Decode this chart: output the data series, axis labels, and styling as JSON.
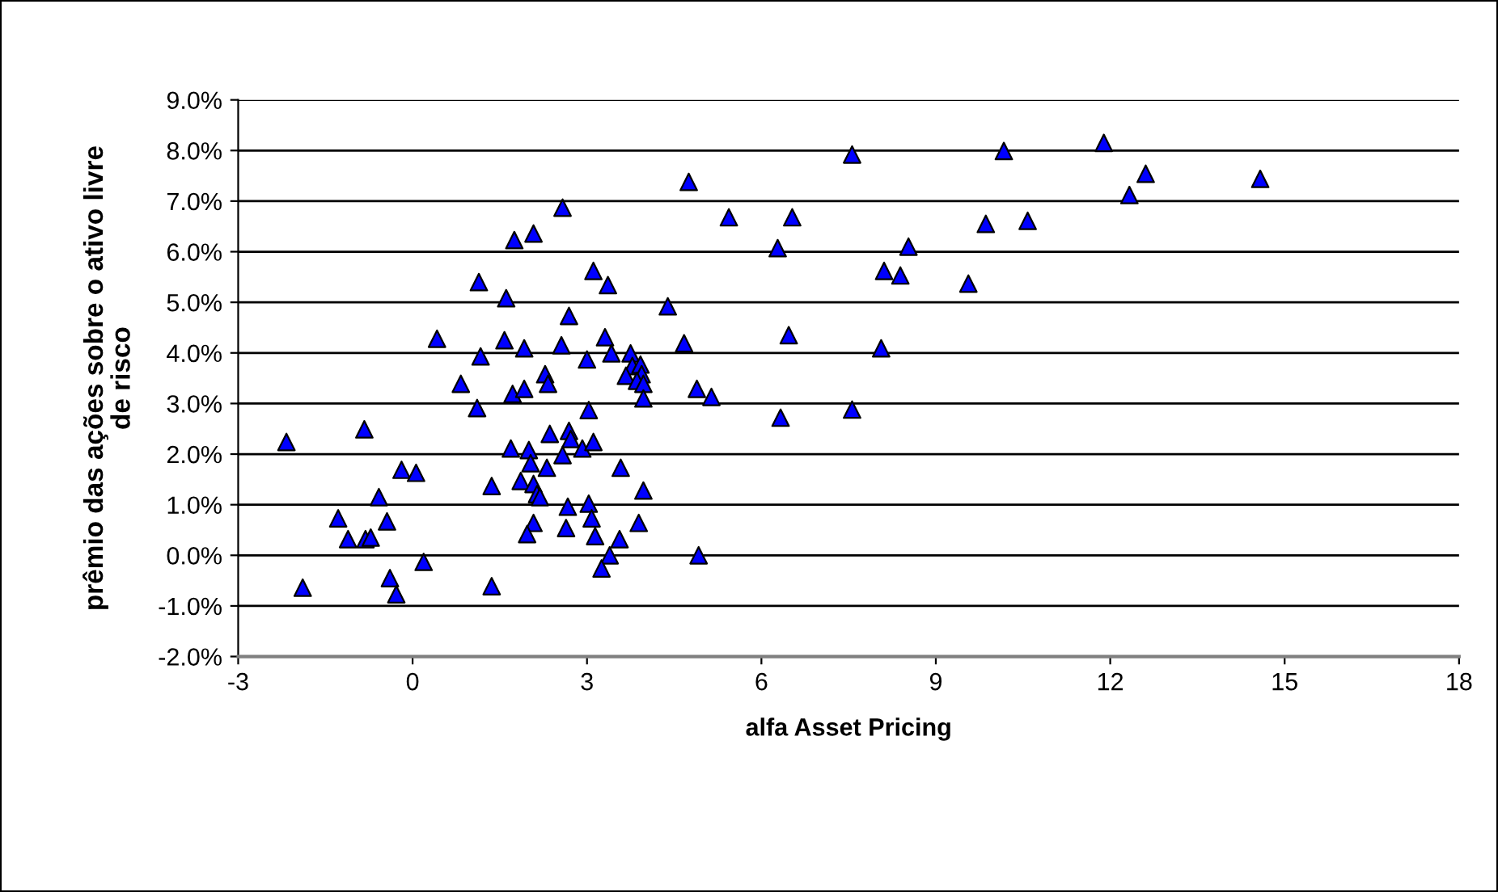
{
  "chart_data": {
    "type": "scatter",
    "xlabel": "alfa Asset Pricing",
    "ylabel": "prêmio das ações sobre o ativo livre\nde risco",
    "xlim": [
      -3,
      18
    ],
    "xticks": [
      -3,
      0,
      3,
      6,
      9,
      12,
      15,
      18
    ],
    "ylim": [
      -2,
      9
    ],
    "yticks": [
      {
        "value": -2,
        "label": "-2.0%"
      },
      {
        "value": -1,
        "label": "-1.0%"
      },
      {
        "value": 0,
        "label": "0.0%"
      },
      {
        "value": 1,
        "label": "1.0%"
      },
      {
        "value": 2,
        "label": "2.0%"
      },
      {
        "value": 3,
        "label": "3.0%"
      },
      {
        "value": 4,
        "label": "4.0%"
      },
      {
        "value": 5,
        "label": "5.0%"
      },
      {
        "value": 6,
        "label": "6.0%"
      },
      {
        "value": 7,
        "label": "7.0%"
      },
      {
        "value": 8,
        "label": "8.0%"
      },
      {
        "value": 9,
        "label": "9.0%"
      }
    ],
    "grid": "y",
    "marker": "triangle",
    "legend": false,
    "series": [
      {
        "color": "#0000ff",
        "x": [
          4.75,
          5.44,
          2.58,
          1.75,
          2.08,
          3.11,
          3.36,
          1.14,
          1.61,
          2.69,
          4.39,
          0.42,
          1.58,
          1.92,
          2.56,
          3.31,
          4.67,
          1.17,
          3.0,
          3.42,
          3.75,
          3.78,
          3.92,
          3.94,
          3.67,
          3.86,
          3.97,
          0.83,
          1.72,
          1.92,
          2.28,
          2.33,
          4.89,
          5.14,
          3.97,
          7.56,
          10.17,
          11.89,
          12.61,
          12.33,
          14.58,
          6.53,
          6.28,
          8.53,
          8.11,
          8.39,
          9.56,
          9.86,
          10.58,
          6.47,
          8.06,
          6.33,
          7.56,
          -2.17,
          -0.83,
          3.03,
          1.11,
          1.69,
          2.0,
          2.03,
          2.36,
          2.69,
          2.72,
          2.58,
          2.92,
          3.11,
          2.31,
          3.58,
          3.97,
          1.36,
          1.86,
          2.08,
          2.14,
          2.19,
          2.67,
          3.03,
          3.08,
          2.08,
          1.97,
          2.64,
          3.14,
          3.89,
          3.56,
          3.39,
          3.25,
          4.92,
          -0.19,
          0.06,
          -0.58,
          -1.28,
          -0.44,
          -1.11,
          -0.81,
          -0.72,
          0.19,
          -0.39,
          -0.28,
          -1.89,
          1.36
        ],
        "values": [
          7.38,
          6.68,
          6.87,
          6.23,
          6.36,
          5.62,
          5.34,
          5.4,
          5.08,
          4.73,
          4.92,
          4.28,
          4.25,
          4.09,
          4.15,
          4.31,
          4.19,
          3.93,
          3.87,
          3.99,
          3.99,
          3.74,
          3.77,
          3.58,
          3.55,
          3.45,
          3.39,
          3.39,
          3.19,
          3.29,
          3.58,
          3.39,
          3.29,
          3.13,
          3.1,
          7.92,
          7.99,
          8.15,
          7.54,
          7.12,
          7.44,
          6.68,
          6.07,
          6.1,
          5.62,
          5.53,
          5.37,
          6.55,
          6.61,
          4.35,
          4.09,
          2.72,
          2.88,
          2.24,
          2.49,
          2.87,
          2.91,
          2.11,
          2.08,
          1.82,
          2.4,
          2.46,
          2.3,
          1.98,
          2.11,
          2.24,
          1.73,
          1.73,
          1.28,
          1.37,
          1.47,
          1.41,
          1.21,
          1.15,
          0.96,
          1.02,
          0.73,
          0.64,
          0.42,
          0.54,
          0.38,
          0.64,
          0.32,
          0.0,
          -0.26,
          0.0,
          1.69,
          1.63,
          1.15,
          0.73,
          0.67,
          0.32,
          0.32,
          0.35,
          -0.13,
          -0.45,
          -0.77,
          -0.64,
          -0.61
        ]
      }
    ]
  }
}
